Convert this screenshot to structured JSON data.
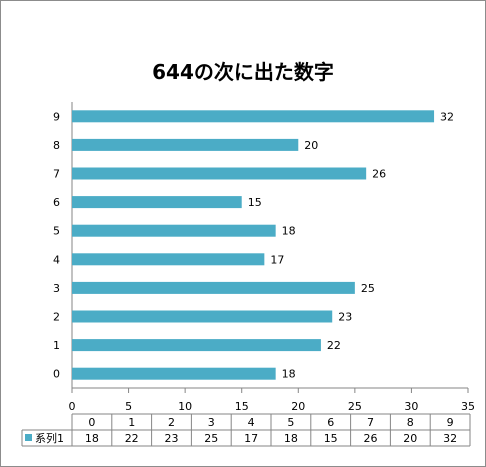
{
  "chart_data": {
    "type": "bar",
    "orientation": "horizontal",
    "title": "644の次に出た数字",
    "categories": [
      "0",
      "1",
      "2",
      "3",
      "4",
      "5",
      "6",
      "7",
      "8",
      "9"
    ],
    "series": [
      {
        "name": "系列1",
        "values": [
          18,
          22,
          23,
          25,
          17,
          18,
          15,
          26,
          20,
          32
        ]
      }
    ],
    "xlim": [
      0,
      35
    ],
    "xticks": [
      0,
      5,
      10,
      15,
      20,
      25,
      30,
      35
    ],
    "xlabel": "",
    "ylabel": "",
    "grid": false,
    "data_labels": true,
    "data_table": true,
    "bar_color": "#4bacc6"
  }
}
